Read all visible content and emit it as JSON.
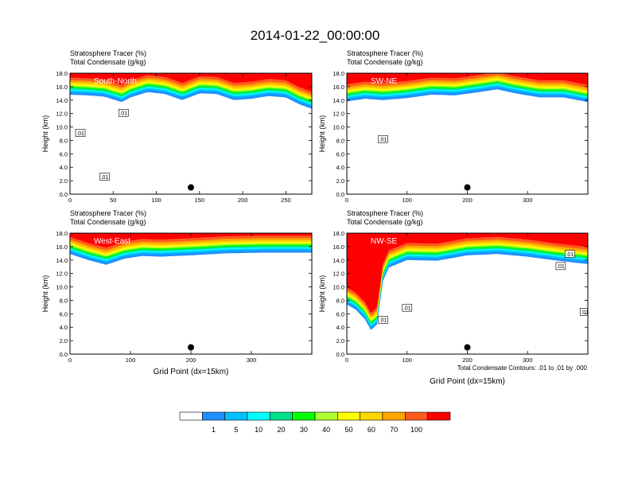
{
  "figure": {
    "title": "2014-01-22_00:00:00",
    "footnote": "Total Condensate Contours: .01 to .01 by .000"
  },
  "colorbar": {
    "labels": [
      "1",
      "5",
      "10",
      "20",
      "30",
      "40",
      "50",
      "60",
      "70",
      "100"
    ],
    "colors": [
      "#ffffff",
      "#1e90ff",
      "#00bfff",
      "#00ffff",
      "#00e08a",
      "#00ff00",
      "#adff2f",
      "#ffff00",
      "#ffd700",
      "#ffa500",
      "#ff5a1e",
      "#ff0000"
    ]
  },
  "chart_data": [
    {
      "type": "heatmap",
      "panel_label": "South-North",
      "subtitle_lines": [
        "Stratosphere Tracer   (%)",
        "Total Condensate   (g/kg)"
      ],
      "xlabel": "",
      "ylabel": "Height (km)",
      "xlim": [
        0,
        280
      ],
      "ylim": [
        0,
        18
      ],
      "xticks": [
        0,
        50,
        100,
        150,
        200,
        250
      ],
      "yticks": [
        0,
        2,
        4,
        6,
        8,
        10,
        12,
        14,
        16,
        18
      ],
      "ytick_labels": [
        "0.0",
        "2.0",
        "4.0",
        "6.0",
        "8.0",
        "10.0",
        "12.0",
        "14.0",
        "16.0",
        "18.0"
      ],
      "tropopause_km": [
        [
          0,
          15.4
        ],
        [
          20,
          15.3
        ],
        [
          40,
          15.1
        ],
        [
          60,
          14.3
        ],
        [
          70,
          15.0
        ],
        [
          90,
          15.8
        ],
        [
          110,
          15.5
        ],
        [
          130,
          14.6
        ],
        [
          150,
          15.6
        ],
        [
          170,
          15.5
        ],
        [
          190,
          14.6
        ],
        [
          210,
          14.8
        ],
        [
          230,
          15.2
        ],
        [
          250,
          15.0
        ],
        [
          265,
          14.0
        ],
        [
          280,
          13.3
        ]
      ],
      "contour_label": ".01",
      "contour_labels_at": [
        [
          12,
          9.1
        ],
        [
          40,
          2.6
        ],
        [
          62,
          12.1
        ]
      ],
      "marker": [
        140,
        1.0
      ]
    },
    {
      "type": "heatmap",
      "panel_label": "SW-NE",
      "subtitle_lines": [
        "Stratosphere Tracer   (%)",
        "Total Condensate   (g/kg)"
      ],
      "xlabel": "",
      "ylabel": "Height (km)",
      "xlim": [
        0,
        400
      ],
      "ylim": [
        0,
        18
      ],
      "xticks": [
        0,
        100,
        200,
        300
      ],
      "yticks": [
        0,
        2,
        4,
        6,
        8,
        10,
        12,
        14,
        16,
        18
      ],
      "ytick_labels": [
        "0.0",
        "2.0",
        "4.0",
        "6.0",
        "8.0",
        "10.0",
        "12.0",
        "14.0",
        "16.0",
        "18.0"
      ],
      "tropopause_km": [
        [
          0,
          14.4
        ],
        [
          30,
          14.8
        ],
        [
          60,
          14.6
        ],
        [
          100,
          14.9
        ],
        [
          140,
          15.4
        ],
        [
          180,
          15.3
        ],
        [
          220,
          15.8
        ],
        [
          250,
          16.2
        ],
        [
          280,
          15.6
        ],
        [
          320,
          15.0
        ],
        [
          360,
          15.0
        ],
        [
          400,
          14.3
        ]
      ],
      "contour_label": ".01",
      "contour_labels_at": [
        [
          60,
          8.2
        ]
      ],
      "marker": [
        200,
        1.0
      ]
    },
    {
      "type": "heatmap",
      "panel_label": "West-East",
      "subtitle_lines": [
        "Stratosphere Tracer   (%)",
        "Total Condensate   (g/kg)"
      ],
      "xlabel": "Grid Point (dx=15km)",
      "ylabel": "Height (km)",
      "xlim": [
        0,
        400
      ],
      "ylim": [
        0,
        18
      ],
      "xticks": [
        0,
        100,
        200,
        300
      ],
      "yticks": [
        0,
        2,
        4,
        6,
        8,
        10,
        12,
        14,
        16,
        18
      ],
      "ytick_labels": [
        "0.0",
        "2.0",
        "4.0",
        "6.0",
        "8.0",
        "10.0",
        "12.0",
        "14.0",
        "16.0",
        "18.0"
      ],
      "tropopause_km": [
        [
          0,
          15.5
        ],
        [
          30,
          14.6
        ],
        [
          60,
          13.9
        ],
        [
          90,
          14.8
        ],
        [
          120,
          15.2
        ],
        [
          150,
          15.1
        ],
        [
          200,
          15.3
        ],
        [
          260,
          15.6
        ],
        [
          320,
          15.7
        ],
        [
          400,
          15.7
        ]
      ],
      "contour_label": "",
      "contour_labels_at": [],
      "marker": [
        200,
        1.0
      ]
    },
    {
      "type": "heatmap",
      "panel_label": "NW-SE",
      "subtitle_lines": [
        "Stratosphere Tracer   (%)",
        "Total Condensate   (g/kg)"
      ],
      "xlabel": "Grid Point (dx=15km)",
      "ylabel": "Height (km)",
      "xlim": [
        0,
        400
      ],
      "ylim": [
        0,
        18
      ],
      "xticks": [
        0,
        100,
        200,
        300
      ],
      "yticks": [
        0,
        2,
        4,
        6,
        8,
        10,
        12,
        14,
        16,
        18
      ],
      "ytick_labels": [
        "0.0",
        "2.0",
        "4.0",
        "6.0",
        "8.0",
        "10.0",
        "12.0",
        "14.0",
        "16.0",
        "18.0"
      ],
      "tropopause_km": [
        [
          0,
          8.0
        ],
        [
          15,
          7.2
        ],
        [
          30,
          5.8
        ],
        [
          40,
          4.2
        ],
        [
          50,
          5.0
        ],
        [
          60,
          11.5
        ],
        [
          70,
          13.5
        ],
        [
          100,
          14.6
        ],
        [
          150,
          14.5
        ],
        [
          200,
          15.3
        ],
        [
          250,
          15.5
        ],
        [
          300,
          15.1
        ],
        [
          350,
          14.5
        ],
        [
          400,
          14.0
        ]
      ],
      "contour_label": ".01",
      "contour_labels_at": [
        [
          60,
          5.1
        ],
        [
          100,
          6.9
        ],
        [
          355,
          13.1
        ],
        [
          370,
          14.9
        ],
        [
          395,
          6.3
        ]
      ],
      "marker": [
        200,
        1.0
      ]
    }
  ]
}
